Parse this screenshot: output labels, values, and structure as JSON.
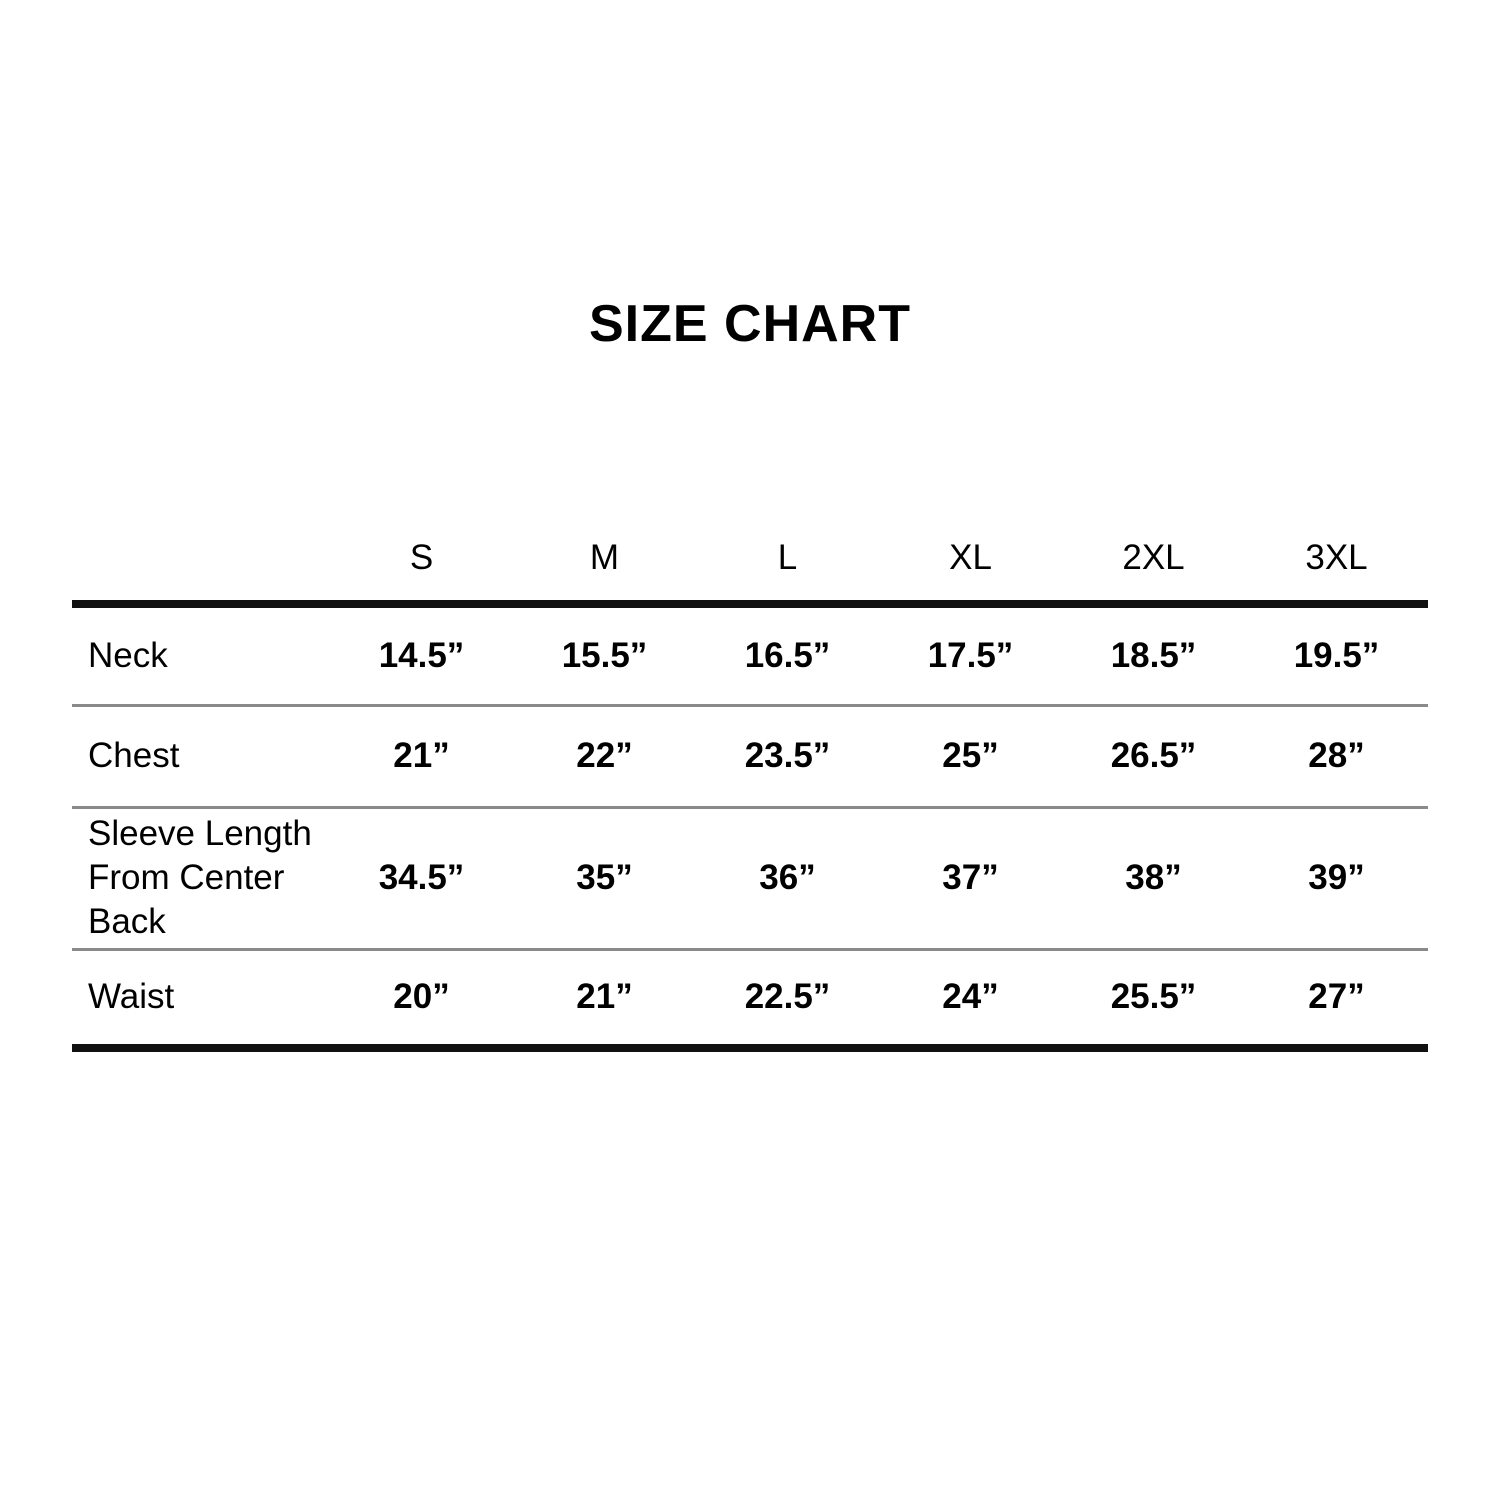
{
  "title": "SIZE CHART",
  "colors": {
    "background": "#ffffff",
    "text": "#000000",
    "heavy_rule": "#111111",
    "light_rule": "#8a8a8a"
  },
  "chart_data": {
    "type": "table",
    "title": "SIZE CHART",
    "columns": [
      "S",
      "M",
      "L",
      "XL",
      "2XL",
      "3XL"
    ],
    "rows": [
      {
        "label": "Neck",
        "values": [
          "14.5”",
          "15.5”",
          "16.5”",
          "17.5”",
          "18.5”",
          "19.5”"
        ]
      },
      {
        "label": "Chest",
        "values": [
          "21”",
          "22”",
          "23.5”",
          "25”",
          "26.5”",
          "28”"
        ]
      },
      {
        "label": "Sleeve Length From Center Back",
        "values": [
          "34.5”",
          "35”",
          "36”",
          "37”",
          "38”",
          "39”"
        ]
      },
      {
        "label": "Waist",
        "values": [
          "20”",
          "21”",
          "22.5”",
          "24”",
          "25.5”",
          "27”"
        ]
      }
    ],
    "layout": {
      "units": "inches",
      "header_rule": "thick",
      "row_rules": "thin",
      "bottom_rule": "thick"
    }
  }
}
